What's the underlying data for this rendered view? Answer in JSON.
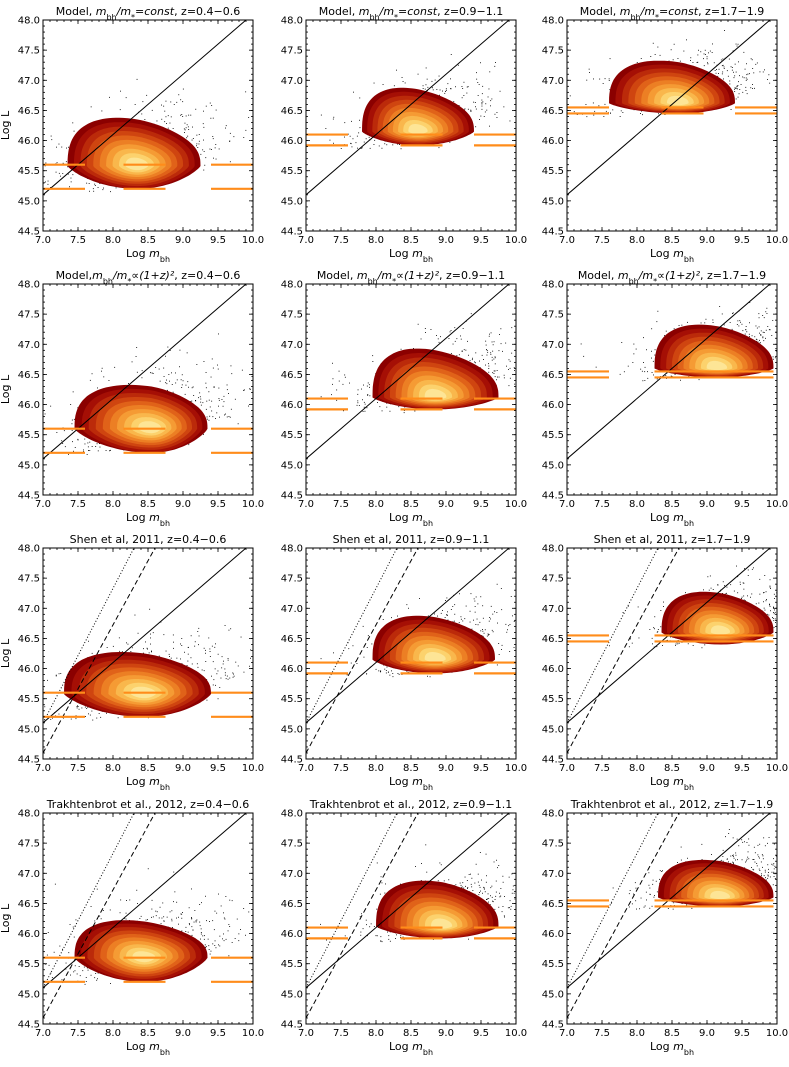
{
  "chart_data": [
    {
      "type": "scatter",
      "panel": "r0c0",
      "title_prefix": "Model, ",
      "title_math": "m_bh/m_*=const",
      "title_suffix": ", z=0.4−0.6",
      "xlabel": "Log m_bh",
      "ylabel": "Log L",
      "xlim": [
        7.0,
        10.0
      ],
      "ylim": [
        44.5,
        48.0
      ],
      "xticks": [
        "7.0",
        "7.5",
        "8.0",
        "8.5",
        "9.0",
        "9.5",
        "10.0"
      ],
      "yticks": [
        "44.5",
        "45.0",
        "45.5",
        "46.0",
        "46.5",
        "47.0",
        "47.5",
        "48.0"
      ],
      "density": {
        "center": [
          8.35,
          45.62
        ],
        "x_range": [
          7.35,
          9.25
        ],
        "y_range": [
          45.2,
          46.35
        ],
        "peak_y": 45.58
      },
      "luminosity_limits": [
        45.6,
        45.2
      ],
      "limit_segments_x": [
        [
          7.0,
          7.6
        ],
        [
          8.15,
          8.75
        ],
        [
          9.4,
          10.0
        ]
      ],
      "reference_lines": [
        {
          "style": "solid",
          "points": [
            [
              7.0,
              45.1
            ],
            [
              10.0,
              48.1
            ]
          ]
        }
      ]
    },
    {
      "type": "scatter",
      "panel": "r0c1",
      "title_prefix": "Model, ",
      "title_math": "m_bh/m_*=const",
      "title_suffix": ", z=0.9−1.1",
      "xlabel": "Log m_bh",
      "ylabel": "",
      "xlim": [
        7.0,
        10.0
      ],
      "ylim": [
        44.5,
        48.0
      ],
      "xticks": [
        "7.0",
        "7.5",
        "8.0",
        "8.5",
        "9.0",
        "9.5",
        "10.0"
      ],
      "yticks": [
        "44.5",
        "45.0",
        "45.5",
        "46.0",
        "46.5",
        "47.0",
        "47.5",
        "48.0"
      ],
      "density": {
        "center": [
          8.6,
          46.18
        ],
        "x_range": [
          7.8,
          9.4
        ],
        "y_range": [
          45.92,
          46.85
        ],
        "peak_y": 46.15
      },
      "luminosity_limits": [
        46.1,
        45.92
      ],
      "limit_segments_x": [
        [
          7.0,
          7.6
        ],
        [
          8.35,
          8.95
        ],
        [
          9.4,
          10.0
        ]
      ],
      "reference_lines": [
        {
          "style": "solid",
          "points": [
            [
              7.0,
              45.1
            ],
            [
              10.0,
              48.1
            ]
          ]
        }
      ]
    },
    {
      "type": "scatter",
      "panel": "r0c2",
      "title_prefix": "Model, ",
      "title_math": "m_bh/m_*=const",
      "title_suffix": ", z=1.7−1.9",
      "xlabel": "Log m_bh",
      "ylabel": "",
      "xlim": [
        7.0,
        10.0
      ],
      "ylim": [
        44.5,
        48.0
      ],
      "xticks": [
        "7.0",
        "7.5",
        "8.0",
        "8.5",
        "9.0",
        "9.5",
        "10.0"
      ],
      "yticks": [
        "44.5",
        "45.0",
        "45.5",
        "46.0",
        "46.5",
        "47.0",
        "47.5",
        "48.0"
      ],
      "density": {
        "center": [
          8.6,
          46.75
        ],
        "x_range": [
          7.6,
          9.4
        ],
        "y_range": [
          46.45,
          47.3
        ],
        "peak_y": 46.62
      },
      "luminosity_limits": [
        46.55,
        46.45
      ],
      "limit_segments_x": [
        [
          7.0,
          7.6
        ],
        [
          8.35,
          8.95
        ],
        [
          9.4,
          10.0
        ]
      ],
      "reference_lines": [
        {
          "style": "solid",
          "points": [
            [
              7.0,
              45.1
            ],
            [
              10.0,
              48.1
            ]
          ]
        }
      ]
    },
    {
      "type": "scatter",
      "panel": "r1c0",
      "title_prefix": "Model,",
      "title_math": "m_bh/m_*∝(1+z)²",
      "title_suffix": ", z=0.4−0.6",
      "xlabel": "Log m_bh",
      "ylabel": "Log L",
      "xlim": [
        7.0,
        10.0
      ],
      "ylim": [
        44.5,
        48.0
      ],
      "xticks": [
        "7.0",
        "7.5",
        "8.0",
        "8.5",
        "9.0",
        "9.5",
        "10.0"
      ],
      "yticks": [
        "44.5",
        "45.0",
        "45.5",
        "46.0",
        "46.5",
        "47.0",
        "47.5",
        "48.0"
      ],
      "density": {
        "center": [
          8.55,
          45.65
        ],
        "x_range": [
          7.45,
          9.35
        ],
        "y_range": [
          45.2,
          46.3
        ],
        "peak_y": 45.6
      },
      "luminosity_limits": [
        45.6,
        45.2
      ],
      "limit_segments_x": [
        [
          7.0,
          7.6
        ],
        [
          8.15,
          8.75
        ],
        [
          9.4,
          10.0
        ]
      ],
      "reference_lines": [
        {
          "style": "solid",
          "points": [
            [
              7.0,
              45.1
            ],
            [
              10.0,
              48.1
            ]
          ]
        }
      ]
    },
    {
      "type": "scatter",
      "panel": "r1c1",
      "title_prefix": "Model, ",
      "title_math": "m_bh/m_*∝(1+z)²",
      "title_suffix": ", z=0.9−1.1",
      "xlabel": "Log m_bh",
      "ylabel": "",
      "xlim": [
        7.0,
        10.0
      ],
      "ylim": [
        44.5,
        48.0
      ],
      "xticks": [
        "7.0",
        "7.5",
        "8.0",
        "8.5",
        "9.0",
        "9.5",
        "10.0"
      ],
      "yticks": [
        "44.5",
        "45.0",
        "45.5",
        "46.0",
        "46.5",
        "47.0",
        "47.5",
        "48.0"
      ],
      "density": {
        "center": [
          8.85,
          46.25
        ],
        "x_range": [
          7.95,
          9.75
        ],
        "y_range": [
          45.92,
          46.9
        ],
        "peak_y": 46.12
      },
      "luminosity_limits": [
        46.1,
        45.92
      ],
      "limit_segments_x": [
        [
          7.0,
          7.6
        ],
        [
          8.35,
          8.95
        ],
        [
          9.4,
          10.0
        ]
      ],
      "reference_lines": [
        {
          "style": "solid",
          "points": [
            [
              7.0,
              45.1
            ],
            [
              10.0,
              48.1
            ]
          ]
        }
      ]
    },
    {
      "type": "scatter",
      "panel": "r1c2",
      "title_prefix": "Model, ",
      "title_math": "m_bh/m_*∝(1+z)²",
      "title_suffix": ", z=1.7−1.9",
      "xlabel": "Log m_bh",
      "ylabel": "",
      "xlim": [
        7.0,
        10.0
      ],
      "ylim": [
        44.5,
        48.0
      ],
      "xticks": [
        "7.0",
        "7.5",
        "8.0",
        "8.5",
        "9.0",
        "9.5",
        "10.0"
      ],
      "yticks": [
        "44.5",
        "45.0",
        "45.5",
        "46.0",
        "46.5",
        "47.0",
        "47.5",
        "48.0"
      ],
      "density": {
        "center": [
          9.15,
          46.75
        ],
        "x_range": [
          8.25,
          9.95
        ],
        "y_range": [
          46.45,
          47.3
        ],
        "peak_y": 46.6
      },
      "luminosity_limits": [
        46.55,
        46.45
      ],
      "limit_segments_x": [
        [
          7.0,
          7.6
        ],
        [
          8.25,
          9.95
        ]
      ],
      "reference_lines": [
        {
          "style": "solid",
          "points": [
            [
              7.0,
              45.1
            ],
            [
              10.0,
              48.1
            ]
          ]
        }
      ]
    },
    {
      "type": "scatter",
      "panel": "r2c0",
      "title_prefix": "Shen et al, 2011, z=0.4−0.6",
      "title_math": "",
      "title_suffix": "",
      "xlabel": "Log m_bh",
      "ylabel": "Log L",
      "xlim": [
        7.0,
        10.0
      ],
      "ylim": [
        44.5,
        48.0
      ],
      "xticks": [
        "7.0",
        "7.5",
        "8.0",
        "8.5",
        "9.0",
        "9.5",
        "10.0"
      ],
      "yticks": [
        "44.5",
        "45.0",
        "45.5",
        "46.0",
        "46.5",
        "47.0",
        "47.5",
        "48.0"
      ],
      "density": {
        "center": [
          8.45,
          45.62
        ],
        "x_range": [
          7.3,
          9.4
        ],
        "y_range": [
          45.2,
          46.25
        ],
        "peak_y": 45.58
      },
      "luminosity_limits": [
        45.6,
        45.2
      ],
      "limit_segments_x": [
        [
          7.0,
          7.6
        ],
        [
          8.15,
          8.75
        ],
        [
          9.4,
          10.0
        ]
      ],
      "reference_lines": [
        {
          "style": "solid",
          "points": [
            [
              7.0,
              45.1
            ],
            [
              10.0,
              48.1
            ]
          ]
        },
        {
          "style": "dashed",
          "points": [
            [
              7.0,
              44.6
            ],
            [
              8.6,
              48.0
            ]
          ]
        },
        {
          "style": "dotted",
          "points": [
            [
              7.0,
              45.1
            ],
            [
              8.3,
              48.0
            ]
          ]
        }
      ]
    },
    {
      "type": "scatter",
      "panel": "r2c1",
      "title_prefix": "Shen et al, 2011, z=0.9−1.1",
      "title_math": "",
      "title_suffix": "",
      "xlabel": "Log m_bh",
      "ylabel": "",
      "xlim": [
        7.0,
        10.0
      ],
      "ylim": [
        44.5,
        48.0
      ],
      "xticks": [
        "7.0",
        "7.5",
        "8.0",
        "8.5",
        "9.0",
        "9.5",
        "10.0"
      ],
      "yticks": [
        "44.5",
        "45.0",
        "45.5",
        "46.0",
        "46.5",
        "47.0",
        "47.5",
        "48.0"
      ],
      "density": {
        "center": [
          8.85,
          46.22
        ],
        "x_range": [
          7.95,
          9.7
        ],
        "y_range": [
          45.92,
          46.85
        ],
        "peak_y": 46.15
      },
      "luminosity_limits": [
        46.1,
        45.92
      ],
      "limit_segments_x": [
        [
          7.0,
          7.6
        ],
        [
          8.35,
          8.95
        ],
        [
          9.4,
          10.0
        ]
      ],
      "reference_lines": [
        {
          "style": "solid",
          "points": [
            [
              7.0,
              45.1
            ],
            [
              10.0,
              48.1
            ]
          ]
        },
        {
          "style": "dashed",
          "points": [
            [
              7.0,
              44.6
            ],
            [
              8.6,
              48.0
            ]
          ]
        },
        {
          "style": "dotted",
          "points": [
            [
              7.0,
              45.1
            ],
            [
              8.3,
              48.0
            ]
          ]
        }
      ]
    },
    {
      "type": "scatter",
      "panel": "r2c2",
      "title_prefix": "Shen et al, 2011, z=1.7−1.9",
      "title_math": "",
      "title_suffix": "",
      "xlabel": "Log m_bh",
      "ylabel": "",
      "xlim": [
        7.0,
        10.0
      ],
      "ylim": [
        44.5,
        48.0
      ],
      "xticks": [
        "7.0",
        "7.5",
        "8.0",
        "8.5",
        "9.0",
        "9.5",
        "10.0"
      ],
      "yticks": [
        "44.5",
        "45.0",
        "45.5",
        "46.0",
        "46.5",
        "47.0",
        "47.5",
        "48.0"
      ],
      "density": {
        "center": [
          9.2,
          46.72
        ],
        "x_range": [
          8.35,
          9.95
        ],
        "y_range": [
          46.4,
          47.25
        ],
        "peak_y": 46.6
      },
      "luminosity_limits": [
        46.55,
        46.45
      ],
      "limit_segments_x": [
        [
          7.0,
          7.6
        ],
        [
          8.25,
          9.95
        ]
      ],
      "reference_lines": [
        {
          "style": "solid",
          "points": [
            [
              7.0,
              45.1
            ],
            [
              10.0,
              48.1
            ]
          ]
        },
        {
          "style": "dashed",
          "points": [
            [
              7.0,
              44.6
            ],
            [
              8.6,
              48.0
            ]
          ]
        },
        {
          "style": "dotted",
          "points": [
            [
              7.0,
              45.1
            ],
            [
              8.3,
              48.0
            ]
          ]
        }
      ]
    },
    {
      "type": "scatter",
      "panel": "r3c0",
      "title_prefix": "Trakhtenbrot et al., 2012, z=0.4−0.6",
      "title_math": "",
      "title_suffix": "",
      "xlabel": "Log m_bh",
      "ylabel": "Log L",
      "xlim": [
        7.0,
        10.0
      ],
      "ylim": [
        44.5,
        48.0
      ],
      "xticks": [
        "7.0",
        "7.5",
        "8.0",
        "8.5",
        "9.0",
        "9.5",
        "10.0"
      ],
      "yticks": [
        "44.5",
        "45.0",
        "45.5",
        "46.0",
        "46.5",
        "47.0",
        "47.5",
        "48.0"
      ],
      "density": {
        "center": [
          8.45,
          45.65
        ],
        "x_range": [
          7.45,
          9.35
        ],
        "y_range": [
          45.2,
          46.2
        ],
        "peak_y": 45.6
      },
      "luminosity_limits": [
        45.6,
        45.2
      ],
      "limit_segments_x": [
        [
          7.0,
          7.6
        ],
        [
          8.15,
          8.75
        ],
        [
          9.4,
          10.0
        ]
      ],
      "reference_lines": [
        {
          "style": "solid",
          "points": [
            [
              7.0,
              45.1
            ],
            [
              10.0,
              48.1
            ]
          ]
        },
        {
          "style": "dashed",
          "points": [
            [
              7.0,
              44.6
            ],
            [
              8.6,
              48.0
            ]
          ]
        },
        {
          "style": "dotted",
          "points": [
            [
              7.0,
              45.1
            ],
            [
              8.3,
              48.0
            ]
          ]
        }
      ]
    },
    {
      "type": "scatter",
      "panel": "r3c1",
      "title_prefix": "Trakhtenbrot et al., 2012, z=0.9−1.1",
      "title_math": "",
      "title_suffix": "",
      "xlabel": "Log m_bh",
      "ylabel": "",
      "xlim": [
        7.0,
        10.0
      ],
      "ylim": [
        44.5,
        48.0
      ],
      "xticks": [
        "7.0",
        "7.5",
        "8.0",
        "8.5",
        "9.0",
        "9.5",
        "10.0"
      ],
      "yticks": [
        "44.5",
        "45.0",
        "45.5",
        "46.0",
        "46.5",
        "47.0",
        "47.5",
        "48.0"
      ],
      "density": {
        "center": [
          8.95,
          46.25
        ],
        "x_range": [
          8.0,
          9.75
        ],
        "y_range": [
          45.92,
          46.85
        ],
        "peak_y": 46.12
      },
      "luminosity_limits": [
        46.1,
        45.92
      ],
      "limit_segments_x": [
        [
          7.0,
          7.6
        ],
        [
          8.35,
          8.95
        ],
        [
          9.4,
          10.0
        ]
      ],
      "reference_lines": [
        {
          "style": "solid",
          "points": [
            [
              7.0,
              45.1
            ],
            [
              10.0,
              48.1
            ]
          ]
        },
        {
          "style": "dashed",
          "points": [
            [
              7.0,
              44.6
            ],
            [
              8.6,
              48.0
            ]
          ]
        },
        {
          "style": "dotted",
          "points": [
            [
              7.0,
              45.1
            ],
            [
              8.3,
              48.0
            ]
          ]
        }
      ]
    },
    {
      "type": "scatter",
      "panel": "r3c2",
      "title_prefix": "Trakhtenbrot et al., 2012, z=1.7−1.9",
      "title_math": "",
      "title_suffix": "",
      "xlabel": "Log m_bh",
      "ylabel": "",
      "xlim": [
        7.0,
        10.0
      ],
      "ylim": [
        44.5,
        48.0
      ],
      "xticks": [
        "7.0",
        "7.5",
        "8.0",
        "8.5",
        "9.0",
        "9.5",
        "10.0"
      ],
      "yticks": [
        "44.5",
        "45.0",
        "45.5",
        "46.0",
        "46.5",
        "47.0",
        "47.5",
        "48.0"
      ],
      "density": {
        "center": [
          9.2,
          46.78
        ],
        "x_range": [
          8.3,
          9.95
        ],
        "y_range": [
          46.45,
          47.2
        ],
        "peak_y": 46.6
      },
      "luminosity_limits": [
        46.55,
        46.45
      ],
      "limit_segments_x": [
        [
          7.0,
          7.6
        ],
        [
          8.25,
          9.95
        ]
      ],
      "reference_lines": [
        {
          "style": "solid",
          "points": [
            [
              7.0,
              45.1
            ],
            [
              10.0,
              48.1
            ]
          ]
        },
        {
          "style": "dashed",
          "points": [
            [
              7.0,
              44.6
            ],
            [
              8.6,
              48.0
            ]
          ]
        },
        {
          "style": "dotted",
          "points": [
            [
              7.0,
              45.1
            ],
            [
              8.3,
              48.0
            ]
          ]
        }
      ]
    }
  ],
  "colors": {
    "contour_levels": [
      "#8b0000",
      "#a50f05",
      "#bb2a0a",
      "#cf4510",
      "#e06219",
      "#ec7f24",
      "#f59b34",
      "#f9b74c",
      "#fcd26d",
      "#fde596"
    ],
    "limit_lines": "#ff8c1a",
    "points": "#000000"
  }
}
